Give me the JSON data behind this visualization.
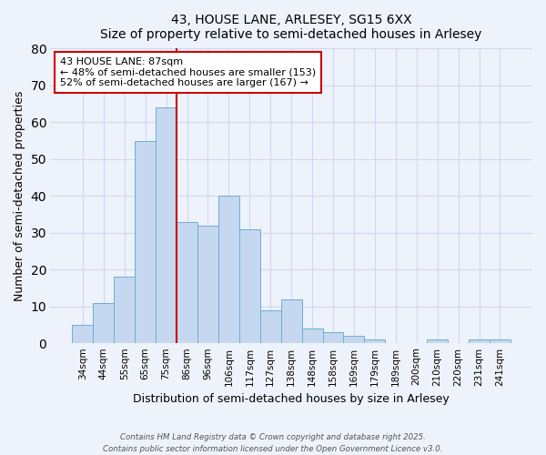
{
  "title": "43, HOUSE LANE, ARLESEY, SG15 6XX",
  "subtitle": "Size of property relative to semi-detached houses in Arlesey",
  "xlabel": "Distribution of semi-detached houses by size in Arlesey",
  "ylabel": "Number of semi-detached properties",
  "bar_labels": [
    "34sqm",
    "44sqm",
    "55sqm",
    "65sqm",
    "75sqm",
    "86sqm",
    "96sqm",
    "106sqm",
    "117sqm",
    "127sqm",
    "138sqm",
    "148sqm",
    "158sqm",
    "169sqm",
    "179sqm",
    "189sqm",
    "200sqm",
    "210sqm",
    "220sqm",
    "231sqm",
    "241sqm"
  ],
  "bar_values": [
    5,
    11,
    18,
    55,
    64,
    33,
    32,
    40,
    31,
    9,
    12,
    4,
    3,
    2,
    1,
    0,
    0,
    1,
    0,
    1,
    1
  ],
  "bar_color": "#c5d8f0",
  "bar_edge_color": "#6aaed6",
  "ylim": [
    0,
    80
  ],
  "yticks": [
    0,
    10,
    20,
    30,
    40,
    50,
    60,
    70,
    80
  ],
  "vline_x_index": 5,
  "vline_color": "#cc0000",
  "annotation_lines": [
    "43 HOUSE LANE: 87sqm",
    "← 48% of semi-detached houses are smaller (153)",
    "52% of semi-detached houses are larger (167) →"
  ],
  "footer_line1": "Contains HM Land Registry data © Crown copyright and database right 2025.",
  "footer_line2": "Contains public sector information licensed under the Open Government Licence v3.0.",
  "background_color": "#eef2fb",
  "grid_color": "#d0d8ee"
}
